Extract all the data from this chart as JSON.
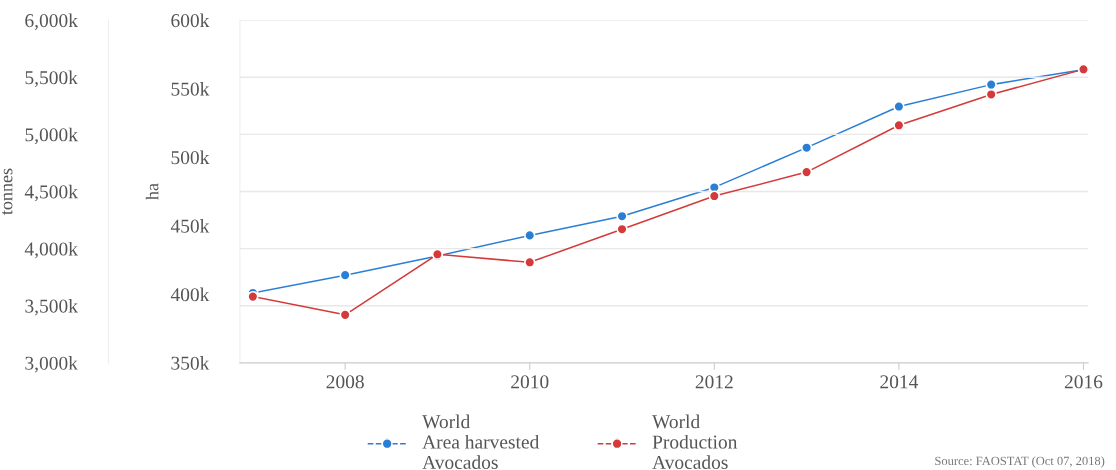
{
  "chart_data": {
    "type": "line",
    "ylabel": "tonnes",
    "y2label": "ha",
    "x": [
      2007,
      2008,
      2009,
      2010,
      2011,
      2012,
      2013,
      2014,
      2015,
      2016
    ],
    "series": [
      {
        "name": "World\nArea harvested\nAvocados",
        "color": "#2a7fd4",
        "axis": "y2",
        "values": [
          401000,
          414000,
          428000,
          443000,
          457000,
          478000,
          507000,
          537000,
          553000,
          564000
        ]
      },
      {
        "name": "World\nProduction\nAvocados",
        "color": "#d43a3a",
        "axis": "y",
        "values": [
          3580000,
          3420000,
          3950000,
          3880000,
          4170000,
          4460000,
          4670000,
          5080000,
          5350000,
          5570000
        ]
      }
    ],
    "xlim": [
      2006.86,
      2016.05
    ],
    "xticks": [
      2008,
      2010,
      2012,
      2014,
      2016
    ],
    "ylim": [
      3000000,
      6000000
    ],
    "yticks": [
      {
        "value": 3000000,
        "label": "3,000k"
      },
      {
        "value": 3500000,
        "label": "3,500k"
      },
      {
        "value": 4000000,
        "label": "4,000k"
      },
      {
        "value": 4500000,
        "label": "4,500k"
      },
      {
        "value": 5000000,
        "label": "5,000k"
      },
      {
        "value": 5500000,
        "label": "5,500k"
      },
      {
        "value": 6000000,
        "label": "6,000k"
      }
    ],
    "y2lim": [
      350000,
      600000
    ],
    "y2ticks": [
      {
        "value": 350000,
        "label": "350k"
      },
      {
        "value": 400000,
        "label": "400k"
      },
      {
        "value": 450000,
        "label": "450k"
      },
      {
        "value": 500000,
        "label": "500k"
      },
      {
        "value": 550000,
        "label": "550k"
      },
      {
        "value": 600000,
        "label": "600k"
      }
    ],
    "grid": "y",
    "legend": "bottom",
    "marker": "circle",
    "line_style": "solid",
    "annotations": [
      "Source: FAOSTAT (Oct 07, 2018)"
    ]
  }
}
